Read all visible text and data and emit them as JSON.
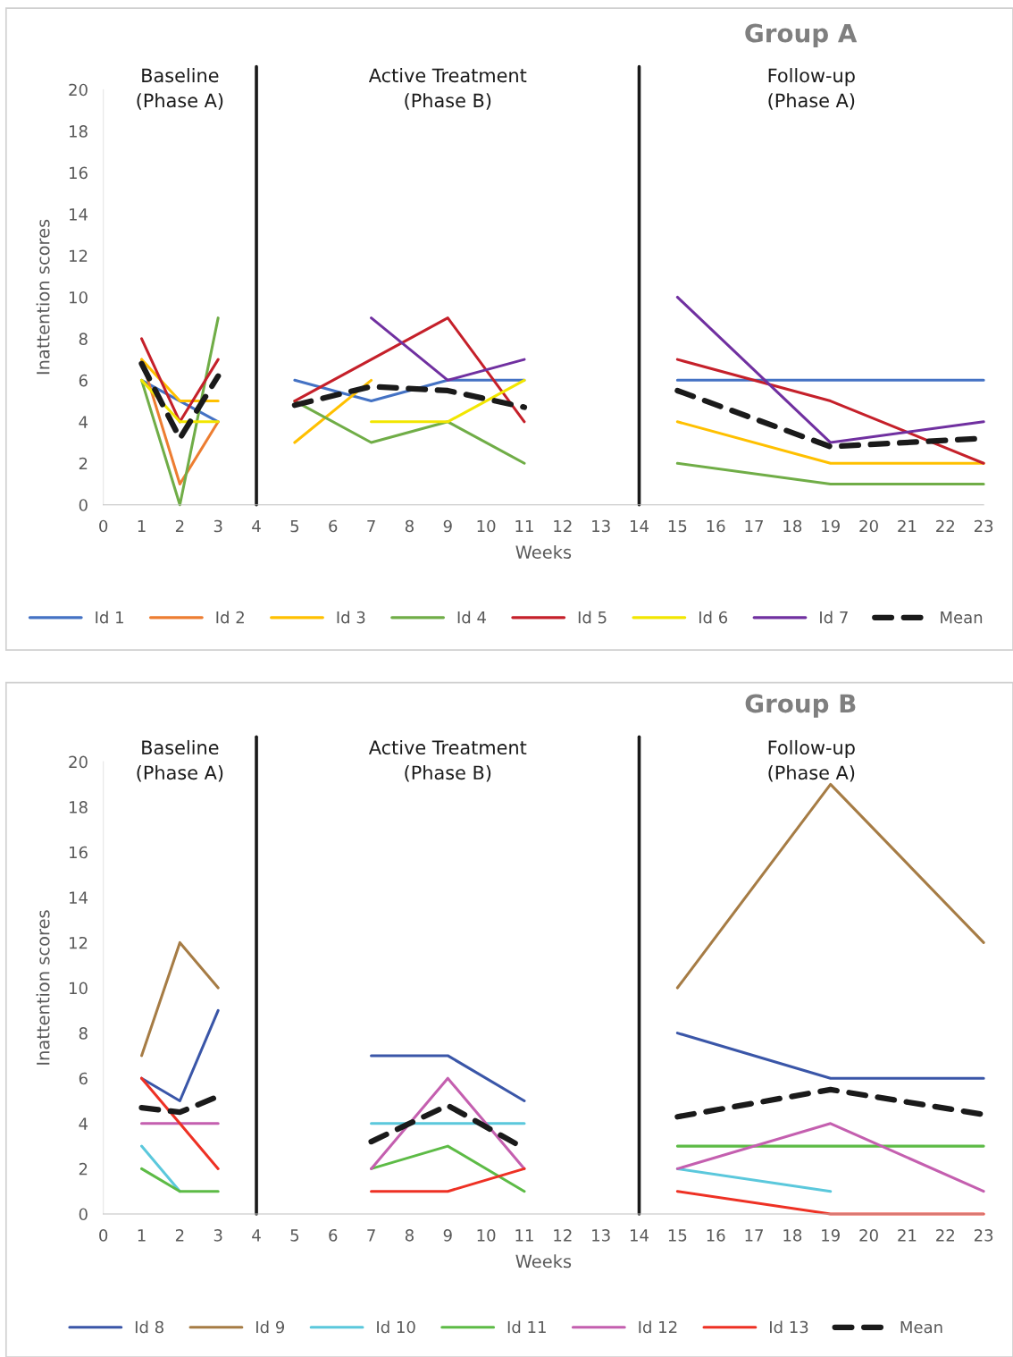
{
  "chart_data": [
    {
      "type": "line",
      "title": "Group A",
      "xlabel": "Weeks",
      "ylabel": "Inattention scores",
      "x": [
        1,
        2,
        3,
        4,
        5,
        7,
        9,
        11,
        14,
        15,
        19,
        23
      ],
      "xlim": [
        0,
        23
      ],
      "xticks": [
        0,
        1,
        2,
        3,
        4,
        5,
        6,
        7,
        8,
        9,
        10,
        11,
        12,
        13,
        14,
        15,
        16,
        17,
        18,
        19,
        20,
        21,
        22,
        23
      ],
      "ylim": [
        0,
        20
      ],
      "yticks": [
        0,
        2,
        4,
        6,
        8,
        10,
        12,
        14,
        16,
        18,
        20
      ],
      "grid": false,
      "legend": "bottom",
      "marker": "none",
      "ref_lines": [
        {
          "axis": "x",
          "value": 4,
          "color": "#1a1a1a"
        },
        {
          "axis": "x",
          "value": 14,
          "color": "#1a1a1a"
        }
      ],
      "annotations": [
        "Baseline\n(Phase A)",
        "Active Treatment\n(Phase B)",
        "Follow-up\n(Phase A)"
      ],
      "series": [
        {
          "name": "Id 1",
          "color": "#4472c4",
          "values": [
            6,
            5,
            4,
            null,
            6,
            5,
            6,
            6,
            null,
            6,
            6,
            6
          ]
        },
        {
          "name": "Id 2",
          "color": "#ed7d31",
          "values": [
            7,
            1,
            4,
            null,
            null,
            null,
            null,
            null,
            null,
            null,
            null,
            null
          ]
        },
        {
          "name": "Id 3",
          "color": "#ffc000",
          "values": [
            7,
            5,
            5,
            null,
            3,
            6,
            null,
            null,
            null,
            4,
            2,
            2
          ]
        },
        {
          "name": "Id 4",
          "color": "#70ad47",
          "values": [
            6,
            0,
            9,
            null,
            5,
            3,
            4,
            2,
            null,
            2,
            1,
            1
          ]
        },
        {
          "name": "Id 5",
          "color": "#c5202a",
          "values": [
            8,
            4,
            7,
            null,
            5,
            7,
            9,
            4,
            null,
            7,
            5,
            2
          ]
        },
        {
          "name": "Id 6",
          "color": "#f2e600",
          "values": [
            6,
            4,
            4,
            null,
            null,
            4,
            4,
            6,
            null,
            null,
            null,
            null
          ]
        },
        {
          "name": "Id 7",
          "color": "#7030a0",
          "values": [
            null,
            null,
            null,
            null,
            null,
            9,
            6,
            7,
            null,
            10,
            3,
            4
          ]
        },
        {
          "name": "Mean",
          "color": "#1a1a1a",
          "line_style": "dashed",
          "values": [
            6.8,
            3.2,
            6.2,
            null,
            4.8,
            5.7,
            5.5,
            4.7,
            null,
            5.5,
            2.8,
            3.2
          ]
        }
      ]
    },
    {
      "type": "line",
      "title": "Group B",
      "xlabel": "Weeks",
      "ylabel": "Inattention scores",
      "x": [
        1,
        2,
        3,
        4,
        5,
        7,
        9,
        11,
        14,
        15,
        19,
        23
      ],
      "xlim": [
        0,
        23
      ],
      "xticks": [
        0,
        1,
        2,
        3,
        4,
        5,
        6,
        7,
        8,
        9,
        10,
        11,
        12,
        13,
        14,
        15,
        16,
        17,
        18,
        19,
        20,
        21,
        22,
        23
      ],
      "ylim": [
        0,
        20
      ],
      "yticks": [
        0,
        2,
        4,
        6,
        8,
        10,
        12,
        14,
        16,
        18,
        20
      ],
      "grid": false,
      "legend": "bottom",
      "marker": "none",
      "ref_lines": [
        {
          "axis": "x",
          "value": 4,
          "color": "#1a1a1a"
        },
        {
          "axis": "x",
          "value": 14,
          "color": "#1a1a1a"
        }
      ],
      "annotations": [
        "Baseline\n(Phase A)",
        "Active Treatment\n(Phase B)",
        "Follow-up\n(Phase A)"
      ],
      "series": [
        {
          "name": "Id 8",
          "color": "#3a56a8",
          "values": [
            6,
            5,
            9,
            null,
            null,
            7,
            7,
            5,
            null,
            8,
            6,
            6
          ]
        },
        {
          "name": "Id 9",
          "color": "#a67c45",
          "values": [
            7,
            12,
            10,
            null,
            null,
            null,
            null,
            null,
            null,
            10,
            19,
            12
          ]
        },
        {
          "name": "Id 10",
          "color": "#5bc8dc",
          "values": [
            3,
            1,
            null,
            null,
            null,
            4,
            4,
            4,
            null,
            2,
            1,
            null
          ]
        },
        {
          "name": "Id 11",
          "color": "#5dbb46",
          "values": [
            2,
            1,
            1,
            null,
            null,
            2,
            3,
            1,
            null,
            3,
            3,
            3
          ]
        },
        {
          "name": "Id 12",
          "color": "#c45faf",
          "values": [
            4,
            4,
            4,
            null,
            null,
            2,
            6,
            2,
            null,
            2,
            4,
            1
          ]
        },
        {
          "name": "Id 13",
          "color": "#ee3124",
          "values": [
            6,
            4,
            2,
            null,
            null,
            1,
            1,
            2,
            null,
            1,
            0,
            0
          ]
        },
        {
          "name": "Mean",
          "color": "#1a1a1a",
          "line_style": "dashed",
          "values": [
            4.7,
            4.5,
            5.2,
            null,
            null,
            3.2,
            4.8,
            2.9,
            null,
            4.3,
            5.5,
            4.4
          ]
        }
      ]
    }
  ]
}
